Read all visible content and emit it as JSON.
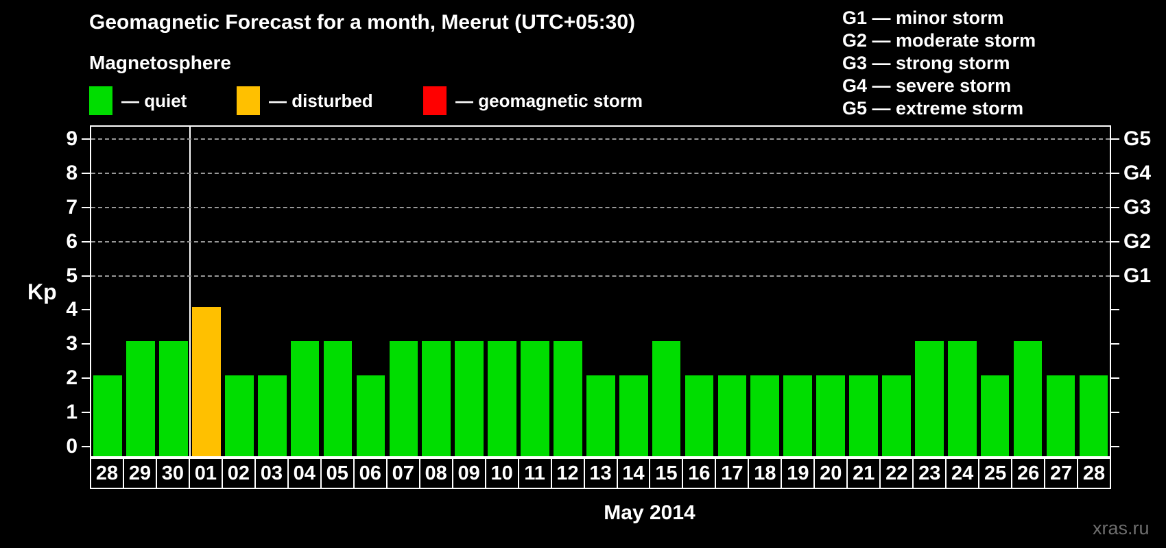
{
  "title": "Geomagnetic Forecast for a month, Meerut (UTC+05:30)",
  "legend": {
    "heading": "Magnetosphere",
    "items": [
      {
        "name": "quiet",
        "label": "— quiet",
        "color": "#00dd00"
      },
      {
        "name": "disturbed",
        "label": "— disturbed",
        "color": "#ffc000"
      },
      {
        "name": "storm",
        "label": "— geomagnetic storm",
        "color": "#ff0000"
      }
    ]
  },
  "storm_scale_legend": [
    "G1 — minor storm",
    "G2 — moderate storm",
    "G3 — strong storm",
    "G4 — severe storm",
    "G5 — extreme storm"
  ],
  "watermark": "xras.ru",
  "chart_data": {
    "type": "bar",
    "title": "Geomagnetic Forecast for a month, Meerut (UTC+05:30)",
    "xlabel": "May 2014",
    "ylabel": "Kp",
    "ylim": [
      0,
      9
    ],
    "yticks": [
      0,
      1,
      2,
      3,
      4,
      5,
      6,
      7,
      8,
      9
    ],
    "gridlines_at": [
      5,
      6,
      7,
      8,
      9
    ],
    "grid": "dashed horizontal at G-storm levels only",
    "legend_position": "top",
    "right_axis_labels": [
      {
        "kp": 5,
        "label": "G1"
      },
      {
        "kp": 6,
        "label": "G2"
      },
      {
        "kp": 7,
        "label": "G3"
      },
      {
        "kp": 8,
        "label": "G4"
      },
      {
        "kp": 9,
        "label": "G5"
      }
    ],
    "month_separator_after_index": 2,
    "categories": [
      "28",
      "29",
      "30",
      "01",
      "02",
      "03",
      "04",
      "05",
      "06",
      "07",
      "08",
      "09",
      "10",
      "11",
      "12",
      "13",
      "14",
      "15",
      "16",
      "17",
      "18",
      "19",
      "20",
      "21",
      "22",
      "23",
      "24",
      "25",
      "26",
      "27",
      "28"
    ],
    "values": [
      2,
      3,
      3,
      4,
      2,
      2,
      3,
      3,
      2,
      3,
      3,
      3,
      3,
      3,
      3,
      2,
      2,
      3,
      2,
      2,
      2,
      2,
      2,
      2,
      2,
      3,
      3,
      2,
      3,
      2,
      2
    ],
    "statuses": [
      "quiet",
      "quiet",
      "quiet",
      "disturbed",
      "quiet",
      "quiet",
      "quiet",
      "quiet",
      "quiet",
      "quiet",
      "quiet",
      "quiet",
      "quiet",
      "quiet",
      "quiet",
      "quiet",
      "quiet",
      "quiet",
      "quiet",
      "quiet",
      "quiet",
      "quiet",
      "quiet",
      "quiet",
      "quiet",
      "quiet",
      "quiet",
      "quiet",
      "quiet",
      "quiet",
      "quiet"
    ],
    "colors": {
      "quiet": "#00dd00",
      "disturbed": "#ffc000",
      "storm": "#ff0000"
    }
  }
}
